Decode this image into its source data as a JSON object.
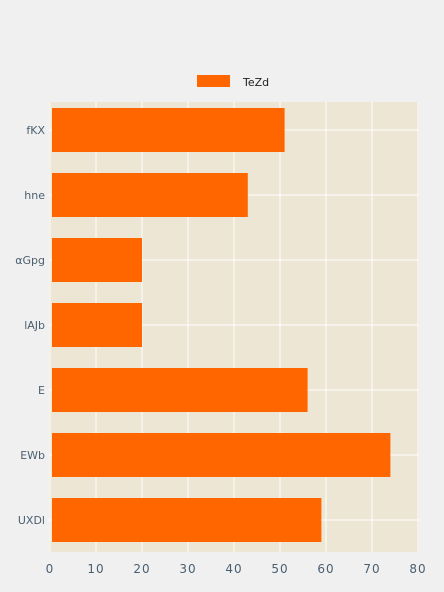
{
  "chart_data": {
    "type": "bar",
    "orientation": "horizontal",
    "categories": [
      "fKX",
      "hne",
      "αGpg",
      "lAJb",
      "E",
      "EWb",
      "UXDl"
    ],
    "series": [
      {
        "name": "TeZd",
        "values": [
          51,
          43,
          20,
          20,
          56,
          74,
          59
        ],
        "color": "#ff6600"
      }
    ],
    "xlim": [
      0,
      80
    ],
    "xticks": [
      0,
      10,
      20,
      30,
      40,
      50,
      60,
      70,
      80
    ],
    "title": "",
    "xlabel": "",
    "ylabel": "",
    "grid": true,
    "legend_position": "top-center",
    "plot_background": "#ede6d4",
    "grid_color": "#ffffff"
  }
}
